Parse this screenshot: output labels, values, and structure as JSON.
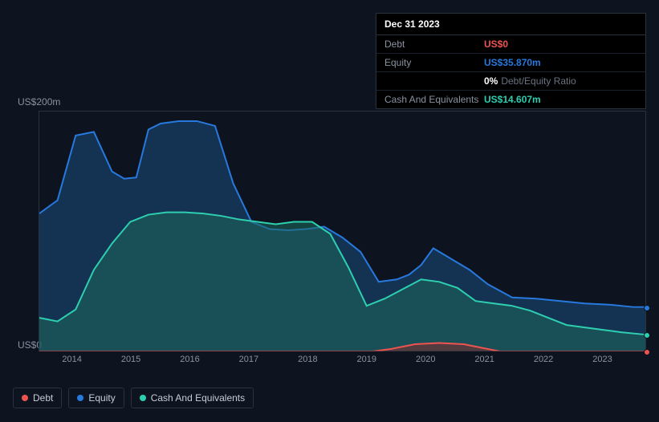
{
  "tooltip": {
    "date": "Dec 31 2023",
    "rows": [
      {
        "label": "Debt",
        "value": "US$0",
        "cls": "debt"
      },
      {
        "label": "Equity",
        "value": "US$35.870m",
        "cls": "equity"
      },
      {
        "label": "",
        "pct": "0%",
        "text": "Debt/Equity Ratio",
        "cls": "ratio"
      },
      {
        "label": "Cash And Equivalents",
        "value": "US$14.607m",
        "cls": "cash"
      }
    ]
  },
  "chart": {
    "type": "area",
    "background_color": "#0d1420",
    "grid_color": "#2a3240",
    "y_top_label": "US$200m",
    "y_bottom_label": "US$0",
    "ylim": [
      0,
      200
    ],
    "x_years": [
      "2014",
      "2015",
      "2016",
      "2017",
      "2018",
      "2019",
      "2020",
      "2021",
      "2022",
      "2023"
    ],
    "x_positions_pct": [
      5.5,
      15.2,
      24.9,
      34.6,
      44.3,
      54.0,
      63.7,
      73.4,
      83.1,
      92.8
    ],
    "series": [
      {
        "name": "Equity",
        "color": "#2779de",
        "fill": "#1b4a7a",
        "fill_opacity": 0.55,
        "points": [
          [
            0,
            115
          ],
          [
            3,
            126
          ],
          [
            6,
            180
          ],
          [
            9,
            183
          ],
          [
            12,
            150
          ],
          [
            14,
            144
          ],
          [
            16,
            145
          ],
          [
            18,
            185
          ],
          [
            20,
            190
          ],
          [
            23,
            192
          ],
          [
            26,
            192
          ],
          [
            29,
            188
          ],
          [
            32,
            140
          ],
          [
            35,
            108
          ],
          [
            38,
            102
          ],
          [
            41,
            101
          ],
          [
            44,
            102
          ],
          [
            47,
            104
          ],
          [
            50,
            95
          ],
          [
            53,
            83
          ],
          [
            56,
            58
          ],
          [
            59,
            60
          ],
          [
            61,
            64
          ],
          [
            63,
            72
          ],
          [
            65,
            86
          ],
          [
            67,
            80
          ],
          [
            69,
            74
          ],
          [
            71,
            68
          ],
          [
            74,
            56
          ],
          [
            78,
            45
          ],
          [
            82,
            44
          ],
          [
            86,
            42
          ],
          [
            90,
            40
          ],
          [
            94,
            39
          ],
          [
            98,
            37
          ],
          [
            100,
            37
          ]
        ]
      },
      {
        "name": "Cash And Equivalents",
        "color": "#2dcfb0",
        "fill": "#1e6a5c",
        "fill_opacity": 0.55,
        "points": [
          [
            0,
            28
          ],
          [
            3,
            25
          ],
          [
            6,
            35
          ],
          [
            9,
            68
          ],
          [
            12,
            90
          ],
          [
            15,
            108
          ],
          [
            18,
            114
          ],
          [
            21,
            116
          ],
          [
            24,
            116
          ],
          [
            27,
            115
          ],
          [
            30,
            113
          ],
          [
            33,
            110
          ],
          [
            36,
            108
          ],
          [
            39,
            106
          ],
          [
            42,
            108
          ],
          [
            45,
            108
          ],
          [
            48,
            98
          ],
          [
            51,
            70
          ],
          [
            54,
            38
          ],
          [
            57,
            44
          ],
          [
            60,
            52
          ],
          [
            63,
            60
          ],
          [
            66,
            58
          ],
          [
            69,
            53
          ],
          [
            72,
            42
          ],
          [
            75,
            40
          ],
          [
            78,
            38
          ],
          [
            81,
            34
          ],
          [
            84,
            28
          ],
          [
            87,
            22
          ],
          [
            90,
            20
          ],
          [
            93,
            18
          ],
          [
            96,
            16
          ],
          [
            100,
            14
          ]
        ]
      },
      {
        "name": "Debt",
        "color": "#ef5350",
        "fill": "#7a2f2f",
        "fill_opacity": 0.6,
        "points": [
          [
            0,
            0
          ],
          [
            55,
            0
          ],
          [
            58,
            2
          ],
          [
            62,
            6
          ],
          [
            66,
            7
          ],
          [
            70,
            6
          ],
          [
            73,
            3
          ],
          [
            76,
            0
          ],
          [
            100,
            0
          ]
        ]
      }
    ],
    "end_dots": [
      {
        "series": "Equity",
        "color": "#2779de",
        "y": 37
      },
      {
        "series": "Cash And Equivalents",
        "color": "#2dcfb0",
        "y": 14
      },
      {
        "series": "Debt",
        "color": "#ef5350",
        "y": 0
      }
    ]
  },
  "legend": [
    {
      "label": "Debt",
      "color": "#ef5350"
    },
    {
      "label": "Equity",
      "color": "#2779de"
    },
    {
      "label": "Cash And Equivalents",
      "color": "#2dcfb0"
    }
  ]
}
